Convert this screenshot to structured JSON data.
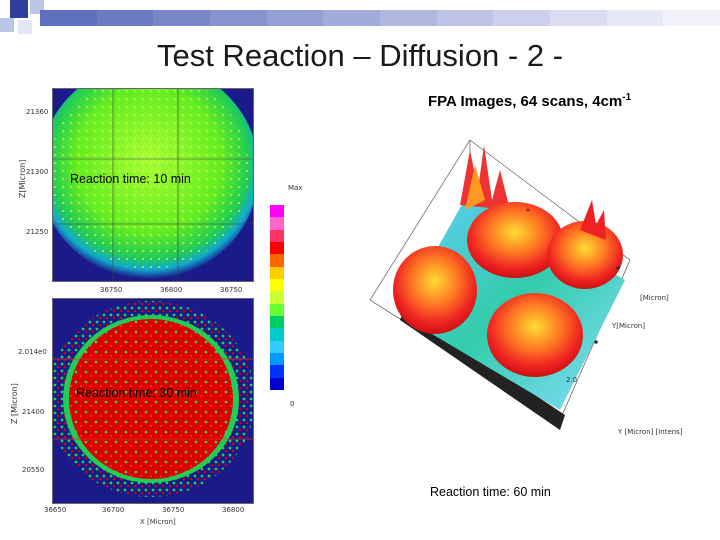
{
  "slide": {
    "title": "Test Reaction – Diffusion - 2 -",
    "subtitle_text": "FPA Images, 64 scans, 4cm",
    "subtitle_sup": "-1"
  },
  "captions": {
    "top_left": "Reaction time: 10 min",
    "bottom_left": "Reaction time: 30 min",
    "right": "Reaction time: 60 min"
  },
  "top_panel": {
    "y_ticks": [
      "21360",
      "21300",
      "21250"
    ],
    "x_ticks": [
      "36750",
      "36800",
      "36750"
    ],
    "y_axis_label": "Z[Micron]"
  },
  "bottom_panel": {
    "y_ticks": [
      "2.014e0",
      "21400",
      "20550"
    ],
    "x_ticks": [
      "36650",
      "36700",
      "36750",
      "36800"
    ],
    "y_axis_label": "Z [Micron]",
    "x_axis_label": "X [Micron]"
  },
  "colorbar": {
    "max_label": "Max",
    "min_label": "0",
    "colors": [
      "#ff00ff",
      "#ff66cc",
      "#ff3366",
      "#ff0000",
      "#ff6600",
      "#ffcc00",
      "#ffff00",
      "#ccff33",
      "#66ff33",
      "#00cc66",
      "#00cccc",
      "#33ccff",
      "#0099ff",
      "#0033ff",
      "#0000cc"
    ]
  },
  "plot3d": {
    "labels": [
      "[Micron]",
      "Y[Micron]",
      "Y [Micron] [Intens]",
      "2.0"
    ]
  },
  "colors": {
    "accent_blue": "#2a4fb3",
    "panel_bg": "#1a1a8a"
  }
}
